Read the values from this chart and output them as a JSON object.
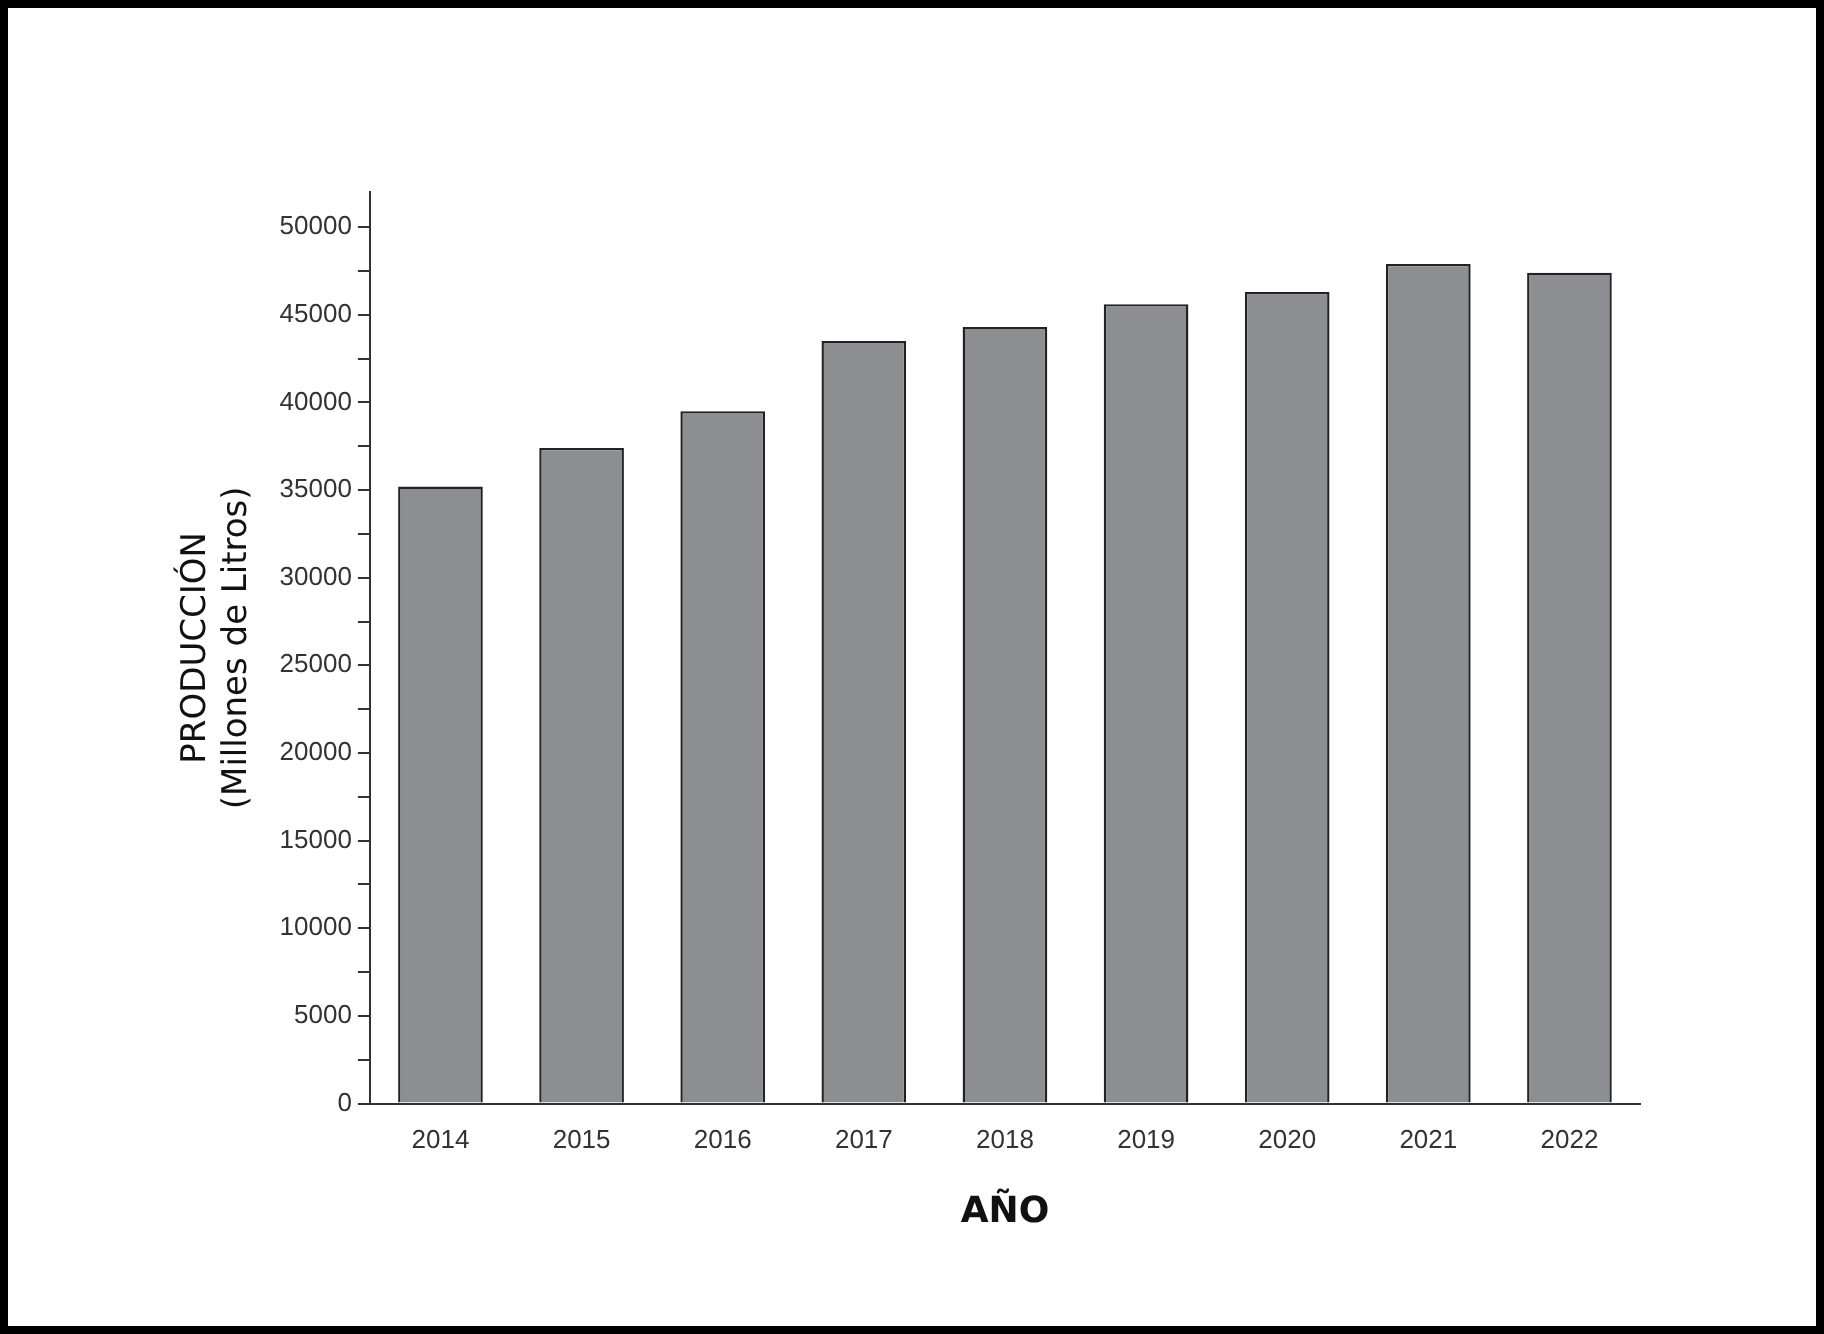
{
  "chart_data": {
    "type": "bar",
    "xlabel": "AÑO",
    "ylabel": "PRODUCCIÓN\n(Millones de Litros)",
    "categories": [
      "2014",
      "2015",
      "2016",
      "2017",
      "2018",
      "2019",
      "2020",
      "2021",
      "2022"
    ],
    "series": [
      {
        "color": "#8d8e92",
        "values": [
          35200,
          37400,
          39500,
          43500,
          44300,
          45600,
          46300,
          47900,
          47400
        ]
      }
    ],
    "ylim": [
      0,
      52000
    ],
    "yticks": [
      0,
      {
        "value": 2500,
        "label": null
      },
      5000,
      {
        "value": 7500,
        "label": null
      },
      10000,
      {
        "value": 12500,
        "label": null
      },
      15000,
      {
        "value": 17500,
        "label": null
      },
      20000,
      {
        "value": 22500,
        "label": null
      },
      25000,
      {
        "value": 27500,
        "label": null
      },
      30000,
      {
        "value": 32500,
        "label": null
      },
      35000,
      {
        "value": 37500,
        "label": null
      },
      40000,
      {
        "value": 42500,
        "label": null
      },
      45000,
      {
        "value": 47500,
        "label": null
      },
      50000
    ],
    "grid": false,
    "legend": false
  }
}
